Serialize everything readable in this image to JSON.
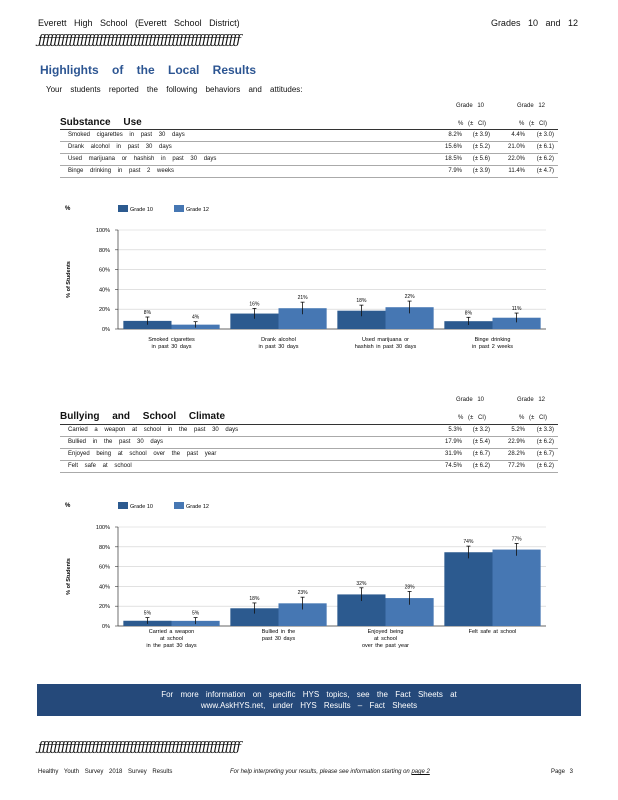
{
  "header": {
    "school": "Everett   High   School   (Everett   School   District)",
    "grades": "Grades   10   and   12",
    "rule": "ƒƒƒƒƒƒƒƒƒƒƒƒƒƒƒƒƒƒƒƒƒƒƒƒƒƒƒƒƒƒƒƒƒƒƒƒƒƒƒƒƒƒƒƒƒƒƒƒƒƒƒƒƒ"
  },
  "title": "Highlights   of the   Local   Results",
  "subtitle": "Your   students   reported   the   following   behaviors   and   attitudes:",
  "column_headers": {
    "grade10": "Grade   10",
    "grade12": "Grade   12",
    "pct10": "%  (± CI)",
    "pct12": "%  (± CI)"
  },
  "substance": {
    "heading": "Substance   Use",
    "rows": [
      {
        "label": "Smoked   cigarettes   in   past   30   days",
        "g10": "8.2%",
        "ci10": "(± 3.9)",
        "g12": "4.4%",
        "ci12": "(± 3.0)"
      },
      {
        "label": "Drank   alcohol   in   past   30   days",
        "g10": "15.6%",
        "ci10": "(± 5.2)",
        "g12": "21.0%",
        "ci12": "(± 6.1)"
      },
      {
        "label": "Used   marijuana   or   hashish   in   past   30   days",
        "g10": "18.5%",
        "ci10": "(± 5.6)",
        "g12": "22.0%",
        "ci12": "(± 6.2)"
      },
      {
        "label": "Binge   drinking   in   past   2   weeks",
        "g10": "7.9%",
        "ci10": "(± 3.9)",
        "g12": "11.4%",
        "ci12": "(± 4.7)"
      }
    ]
  },
  "bullying": {
    "heading": "Bullying   and   School   Climate",
    "rows": [
      {
        "label": "Carried   a weapon   at school   in   the   past   30   days",
        "g10": "5.3%",
        "ci10": "(± 3.2)",
        "g12": "5.2%",
        "ci12": "(± 3.3)"
      },
      {
        "label": "Bullied   in   the   past   30   days",
        "g10": "17.9%",
        "ci10": "(± 5.4)",
        "g12": "22.9%",
        "ci12": "(± 6.2)"
      },
      {
        "label": "Enjoyed   being   at school   over   the   past   year",
        "g10": "31.9%",
        "ci10": "(± 6.7)",
        "g12": "28.2%",
        "ci12": "(± 6.7)"
      },
      {
        "label": "Felt   safe   at school",
        "g10": "74.5%",
        "ci10": "(± 6.2)",
        "g12": "77.2%",
        "ci12": "(± 6.2)"
      }
    ]
  },
  "chart_data": [
    {
      "type": "bar",
      "ylabel": "% of Students",
      "ylim": [
        0,
        100
      ],
      "yticks": [
        "0%",
        "20%",
        "40%",
        "60%",
        "80%",
        "100%"
      ],
      "legend_position": "top-left",
      "categories": [
        [
          "Smoked   cigarettes",
          "in   past   30   days"
        ],
        [
          "Drank   alcohol",
          "in   past   30   days"
        ],
        [
          "Used   marijuana   or",
          "hashish   in   past   30   days"
        ],
        [
          "Binge   drinking",
          "in   past   2   weeks"
        ]
      ],
      "series": [
        {
          "name": "Grade 10",
          "color": "#2c5a8f",
          "values": [
            8.2,
            15.6,
            18.5,
            7.9
          ],
          "ci": [
            3.9,
            5.2,
            5.6,
            3.9
          ],
          "labels": [
            "8%",
            "16%",
            "18%",
            "8%"
          ]
        },
        {
          "name": "Grade 12",
          "color": "#4677b3",
          "values": [
            4.4,
            21.0,
            22.0,
            11.4
          ],
          "ci": [
            3.0,
            6.1,
            6.2,
            4.7
          ],
          "labels": [
            "4%",
            "21%",
            "22%",
            "11%"
          ]
        }
      ]
    },
    {
      "type": "bar",
      "ylabel": "% of Students",
      "ylim": [
        0,
        100
      ],
      "yticks": [
        "0%",
        "20%",
        "40%",
        "60%",
        "80%",
        "100%"
      ],
      "legend_position": "top-left",
      "categories": [
        [
          "Carried   a weapon",
          "at school",
          "in   the   past   30   days"
        ],
        [
          "Bullied   in   the",
          "past   30   days"
        ],
        [
          "Enjoyed   being",
          "at school",
          "over   the   past   year"
        ],
        [
          "Felt   safe   at school"
        ]
      ],
      "series": [
        {
          "name": "Grade 10",
          "color": "#2c5a8f",
          "values": [
            5.3,
            17.9,
            31.9,
            74.5
          ],
          "ci": [
            3.2,
            5.4,
            6.7,
            6.2
          ],
          "labels": [
            "5%",
            "18%",
            "32%",
            "74%"
          ]
        },
        {
          "name": "Grade 12",
          "color": "#4677b3",
          "values": [
            5.2,
            22.9,
            28.2,
            77.2
          ],
          "ci": [
            3.3,
            6.2,
            6.7,
            6.2
          ],
          "labels": [
            "5%",
            "23%",
            "28%",
            "77%"
          ]
        }
      ]
    }
  ],
  "footer_box": {
    "line1": "For   more   information   on   specific   HYS   topics,   see   the   Fact   Sheets   at",
    "line2": "www.AskHYS.net,   under   HYS   Results   –  Fact   Sheets"
  },
  "footer": {
    "left": "Healthy   Youth   Survey   2018   Survey   Results",
    "mid_prefix": "For   help   interpreting   your   results,   please   see   information   starting   on ",
    "mid_link": "page  2",
    "right": "Page   3"
  }
}
